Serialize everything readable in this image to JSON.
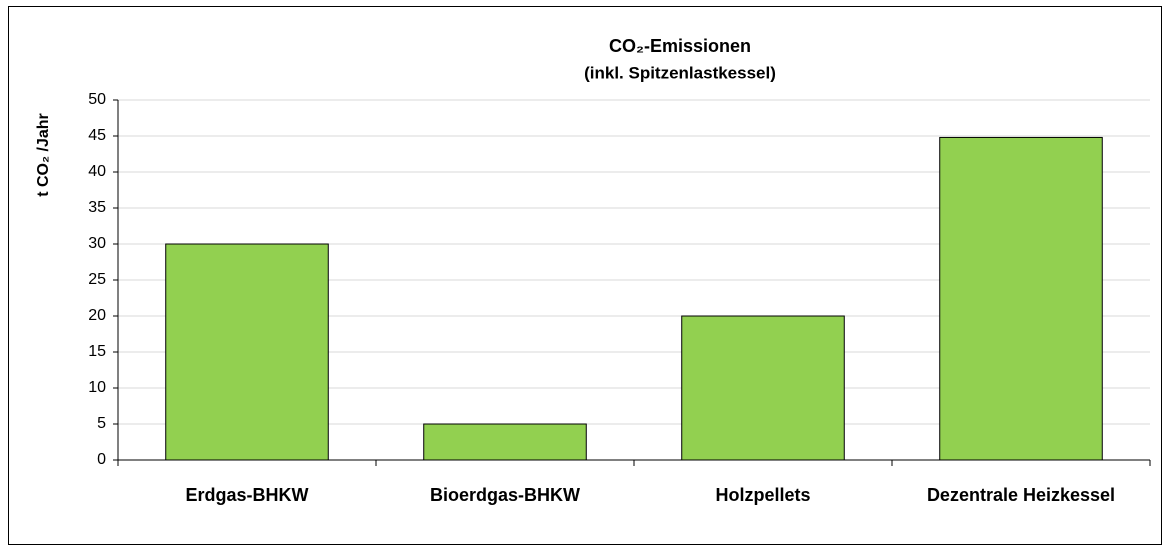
{
  "chart_data": {
    "type": "bar",
    "title": [
      "CO₂-Emissionen",
      "(inkl. Spitzenlastkessel)"
    ],
    "y_label": "t CO₂ /Jahr",
    "categories": [
      "Erdgas-BHKW",
      "Bioerdgas-BHKW",
      "Holzpellets",
      "Dezentrale Heizkessel"
    ],
    "values": [
      30,
      5,
      20,
      44.8
    ],
    "color": "#92d050",
    "ylim": [
      0,
      50
    ],
    "yticks": [
      0,
      5,
      10,
      15,
      20,
      25,
      30,
      35,
      40,
      45,
      50
    ],
    "grid": true
  }
}
